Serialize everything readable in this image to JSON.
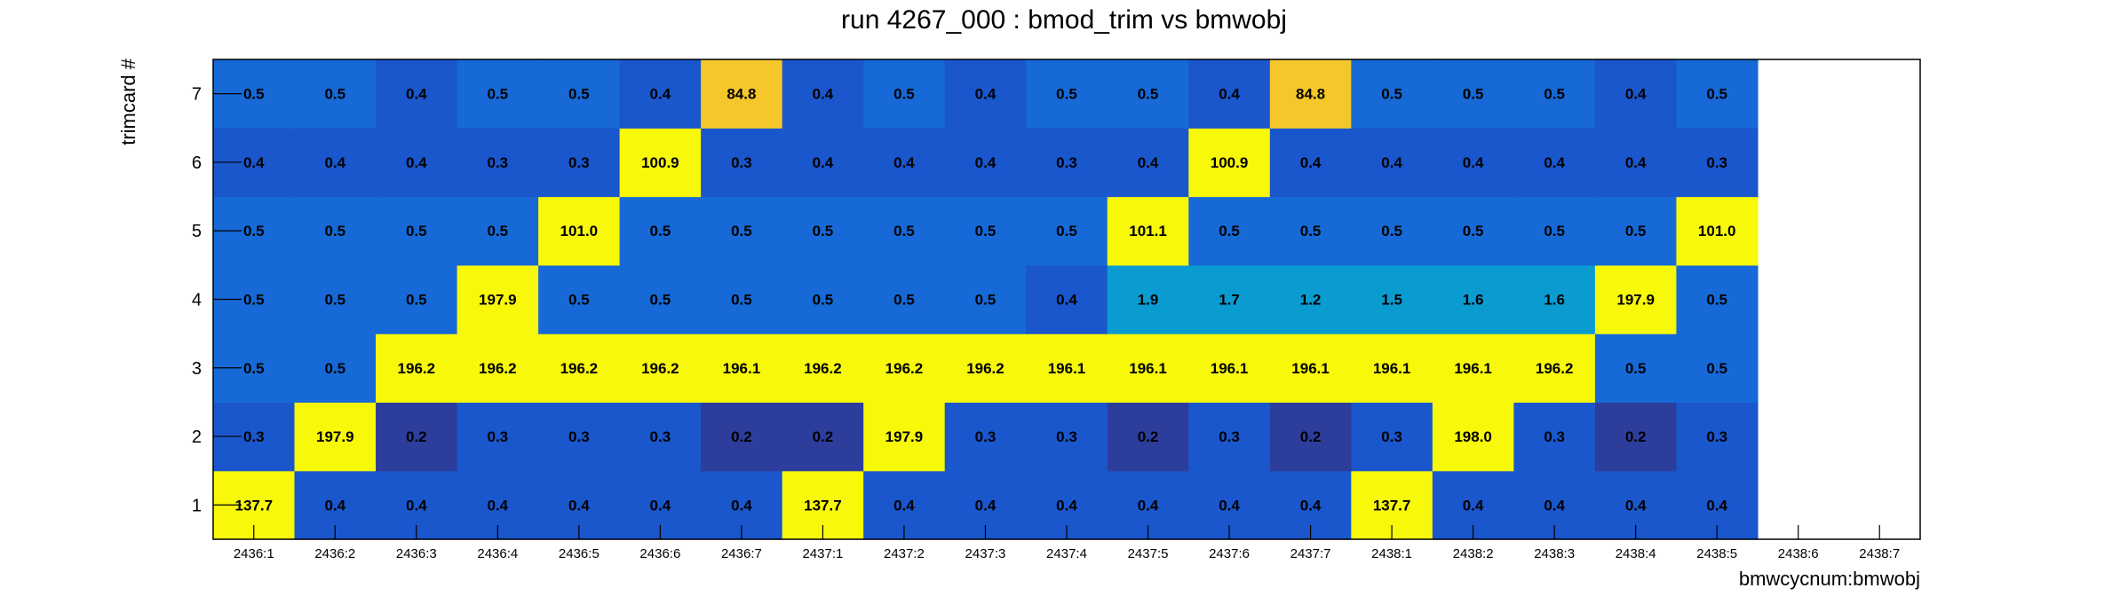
{
  "chart_data": {
    "type": "heatmap",
    "title": "run 4267_000 : bmod_trim vs bmwobj",
    "xlabel": "bmwcycnum:bmwobj",
    "ylabel": "trimcard #",
    "x_categories": [
      "2436:1",
      "2436:2",
      "2436:3",
      "2436:4",
      "2436:5",
      "2436:6",
      "2436:7",
      "2437:1",
      "2437:2",
      "2437:3",
      "2437:4",
      "2437:5",
      "2437:6",
      "2437:7",
      "2438:1",
      "2438:2",
      "2438:3",
      "2438:4",
      "2438:5",
      "2438:6",
      "2438:7"
    ],
    "y_categories": [
      "1",
      "2",
      "3",
      "4",
      "5",
      "6",
      "7"
    ],
    "grid": false,
    "color_scale": [
      "#2c3d9b",
      "#1a56cc",
      "#1669d6",
      "#0a9cd1",
      "#f5c72a",
      "#f8f80a"
    ],
    "rows": [
      {
        "y": "1",
        "values": [
          137.7,
          0.4,
          0.4,
          0.4,
          0.4,
          0.4,
          0.4,
          137.7,
          0.4,
          0.4,
          0.4,
          0.4,
          0.4,
          0.4,
          137.7,
          0.4,
          0.4,
          0.4,
          0.4,
          null,
          null
        ]
      },
      {
        "y": "2",
        "values": [
          0.3,
          197.9,
          0.2,
          0.3,
          0.3,
          0.3,
          0.2,
          0.2,
          197.9,
          0.3,
          0.3,
          0.2,
          0.3,
          0.2,
          0.3,
          198.0,
          0.3,
          0.2,
          0.3,
          null,
          null
        ]
      },
      {
        "y": "3",
        "values": [
          0.5,
          0.5,
          196.2,
          196.2,
          196.2,
          196.2,
          196.1,
          196.2,
          196.2,
          196.2,
          196.1,
          196.1,
          196.1,
          196.1,
          196.1,
          196.1,
          196.2,
          0.5,
          0.5,
          null,
          null
        ]
      },
      {
        "y": "4",
        "values": [
          0.5,
          0.5,
          0.5,
          197.9,
          0.5,
          0.5,
          0.5,
          0.5,
          0.5,
          0.5,
          0.4,
          1.9,
          1.7,
          1.2,
          1.5,
          1.6,
          1.6,
          197.9,
          0.5,
          null,
          null
        ]
      },
      {
        "y": "5",
        "values": [
          0.5,
          0.5,
          0.5,
          0.5,
          101.0,
          0.5,
          0.5,
          0.5,
          0.5,
          0.5,
          0.5,
          101.1,
          0.5,
          0.5,
          0.5,
          0.5,
          0.5,
          0.5,
          101.0,
          null,
          null
        ]
      },
      {
        "y": "6",
        "values": [
          0.4,
          0.4,
          0.4,
          0.3,
          0.3,
          100.9,
          0.3,
          0.4,
          0.4,
          0.4,
          0.3,
          0.4,
          100.9,
          0.4,
          0.4,
          0.4,
          0.4,
          0.4,
          0.3,
          null,
          null
        ]
      },
      {
        "y": "7",
        "values": [
          0.5,
          0.5,
          0.4,
          0.5,
          0.5,
          0.4,
          84.8,
          0.4,
          0.5,
          0.4,
          0.5,
          0.5,
          0.4,
          84.8,
          0.5,
          0.5,
          0.5,
          0.4,
          0.5,
          null,
          null
        ]
      }
    ]
  }
}
